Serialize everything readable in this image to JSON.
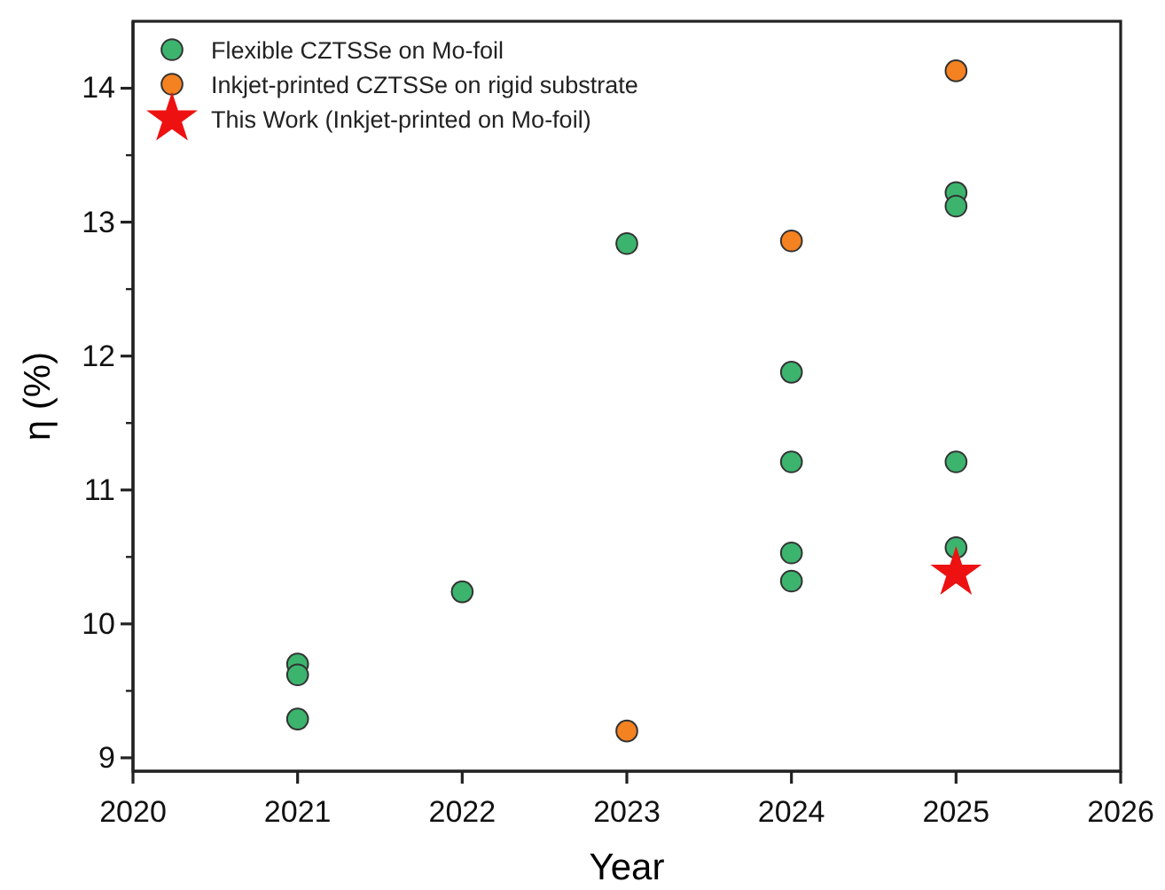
{
  "chart_data": {
    "type": "scatter",
    "xlabel": "Year",
    "ylabel": "η (%)",
    "xlim": [
      2020,
      2026
    ],
    "xticks": [
      2020,
      2021,
      2022,
      2023,
      2024,
      2025,
      2026
    ],
    "ylim": [
      8.9,
      14.5
    ],
    "yticks": [
      9,
      10,
      11,
      12,
      13,
      14
    ],
    "legend": "top left",
    "grid": false,
    "series": [
      {
        "name": "Flexible CZTSSe on Mo-foil",
        "color": "#3cb46e",
        "marker": "circle",
        "x": [
          2021,
          2021,
          2021,
          2022,
          2023,
          2024,
          2024,
          2024,
          2024,
          2025,
          2025,
          2025,
          2025
        ],
        "values": [
          9.7,
          9.62,
          9.29,
          10.24,
          12.84,
          11.88,
          11.21,
          10.53,
          10.32,
          13.22,
          13.12,
          11.21,
          10.57
        ]
      },
      {
        "name": "Inkjet-printed CZTSSe on rigid substrate",
        "color": "#f58220",
        "marker": "circle",
        "x": [
          2023,
          2024,
          2025
        ],
        "values": [
          9.2,
          12.86,
          14.13
        ]
      },
      {
        "name": "This Work (Inkjet-printed on Mo-foil)",
        "color": "#ee1111",
        "marker": "star",
        "x": [
          2025
        ],
        "values": [
          10.38
        ]
      }
    ]
  }
}
